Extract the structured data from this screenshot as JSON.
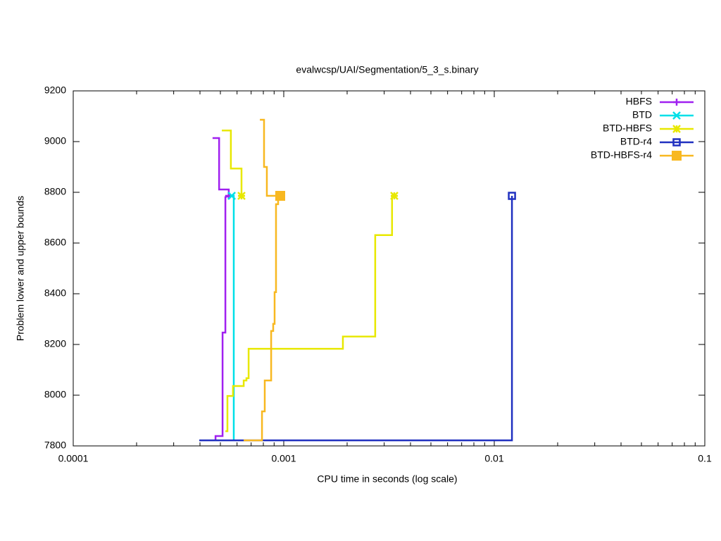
{
  "chart_data": {
    "type": "line",
    "title": "evalwcsp/UAI/Segmentation/5_3_s.binary",
    "x_label": "CPU time in seconds (log scale)",
    "y_label": "Problem lower and upper bounds",
    "x_log": true,
    "xlim": [
      0.0001,
      0.1
    ],
    "xticks": [
      0.0001,
      0.001,
      0.01,
      0.1
    ],
    "ylim": [
      7800,
      9200
    ],
    "yticks": [
      7800,
      8000,
      8200,
      8400,
      8600,
      8800,
      9000,
      9200
    ],
    "legend": "top-right",
    "series": [
      {
        "name": "HBFS",
        "color": "#a020f0",
        "marker": "plus",
        "x": [
          0.000459,
          0.000493,
          0.000493,
          0.000548,
          0.000548,
          null,
          0.000474,
          0.000474,
          0.000512,
          0.000512,
          0.000528,
          0.000528,
          0.000548
        ],
        "values": [
          9014,
          9014,
          8811,
          8811,
          8786,
          null,
          7822,
          7839,
          7839,
          8247,
          8247,
          8781,
          8786
        ]
      },
      {
        "name": "BTD",
        "color": "#00e0e8",
        "marker": "cross",
        "x": [
          0.000579,
          0.000579,
          0.000566
        ],
        "values": [
          7822,
          8786,
          8786
        ]
      },
      {
        "name": "BTD-HBFS",
        "color": "#e8e800",
        "marker": "star",
        "x": [
          0.000508,
          0.000561,
          0.000561,
          0.00063,
          0.00063,
          null,
          0.000528,
          0.00054,
          0.00054,
          0.000574,
          0.000574,
          0.000645,
          0.000645,
          0.000665,
          0.000665,
          0.000681,
          0.000681,
          0.00191,
          0.00191,
          0.00272,
          0.00272,
          0.00327,
          0.00327,
          0.00335
        ],
        "values": [
          9044,
          9044,
          8894,
          8894,
          8786,
          null,
          7858,
          7858,
          7997,
          7997,
          8036,
          8036,
          8058,
          8058,
          8067,
          8067,
          8183,
          8183,
          8231,
          8231,
          8631,
          8631,
          8786,
          8786
        ]
      },
      {
        "name": "BTD-r4",
        "color": "#2030c0",
        "marker": "square",
        "x": [
          0.000397,
          0.01213,
          0.01213
        ],
        "values": [
          7822,
          7822,
          8786
        ]
      },
      {
        "name": "BTD-HBFS-r4",
        "color": "#f8b820",
        "marker": "filled-square",
        "x": [
          0.00077,
          0.000806,
          0.000806,
          0.000831,
          0.000831,
          0.000962,
          null,
          0.000645,
          0.000788,
          0.000788,
          0.000812,
          0.000812,
          0.000871,
          0.000871,
          0.000891,
          0.000891,
          0.000905,
          0.000905,
          0.000919,
          0.000919,
          0.00094,
          0.00094,
          0.000962
        ],
        "values": [
          9086,
          9086,
          8900,
          8900,
          8786,
          8786,
          null,
          7822,
          7822,
          7936,
          7936,
          8058,
          8058,
          8253,
          8253,
          8281,
          8281,
          8406,
          8406,
          8753,
          8753,
          8786,
          8786
        ]
      }
    ]
  }
}
